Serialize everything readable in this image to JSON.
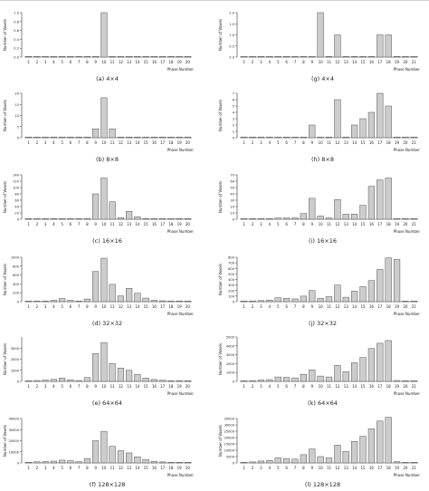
{
  "colors": {
    "bar_fill": "#cccccc",
    "bar_stroke": "#444444",
    "axis": "#333333",
    "text": "#222222"
  },
  "chart_data": [
    {
      "type": "bar",
      "caption": "(a) 4×4",
      "xlabel": "Phase Number",
      "ylabel": "Number of Voxels",
      "categories": [
        "1",
        "2",
        "3",
        "4",
        "5",
        "6",
        "7",
        "8",
        "9",
        "10",
        "11",
        "12",
        "13",
        "14",
        "15",
        "16",
        "17",
        "18",
        "19",
        "20"
      ],
      "values": [
        0,
        0,
        0,
        0,
        0,
        0,
        0,
        0,
        0,
        1,
        0,
        0,
        0,
        0,
        0,
        0,
        0,
        0,
        0,
        0
      ],
      "yticks": [
        "0.0",
        "0.2",
        "0.4",
        "0.6",
        "0.8",
        "1.0"
      ],
      "ylim": [
        0,
        1
      ],
      "grid": false
    },
    {
      "type": "bar",
      "caption": "(g) 4×4",
      "xlabel": "Phase Number",
      "ylabel": "Number of Voxels",
      "categories": [
        "1",
        "2",
        "3",
        "4",
        "5",
        "6",
        "7",
        "8",
        "9",
        "10",
        "11",
        "12",
        "13",
        "14",
        "15",
        "16",
        "17",
        "18",
        "19",
        "20",
        "21"
      ],
      "values": [
        0,
        0,
        0,
        0,
        0,
        0,
        0,
        0,
        0,
        2,
        0,
        1,
        0,
        0,
        0,
        0,
        1,
        1,
        0,
        0,
        0
      ],
      "yticks": [
        "0.0",
        "0.5",
        "1.0",
        "1.5",
        "2.0"
      ],
      "ylim": [
        0,
        2
      ],
      "grid": false
    },
    {
      "type": "bar",
      "caption": "(b) 8×8",
      "xlabel": "Phase Number",
      "ylabel": "Number of Voxels",
      "categories": [
        "1",
        "2",
        "3",
        "4",
        "5",
        "6",
        "7",
        "8",
        "9",
        "10",
        "11",
        "12",
        "13",
        "14",
        "15",
        "16",
        "17",
        "18",
        "19",
        "20"
      ],
      "values": [
        0,
        0,
        0,
        0,
        0,
        0,
        0,
        0,
        4,
        18,
        4,
        0,
        0,
        0,
        0,
        0,
        0,
        0,
        0,
        0
      ],
      "yticks": [
        "0",
        "5",
        "10",
        "15",
        "20"
      ],
      "ylim": [
        0,
        20
      ],
      "grid": false
    },
    {
      "type": "bar",
      "caption": "(h) 8×8",
      "xlabel": "Phase Number",
      "ylabel": "Number of Voxels",
      "categories": [
        "1",
        "2",
        "3",
        "4",
        "5",
        "6",
        "7",
        "8",
        "9",
        "10",
        "11",
        "12",
        "13",
        "14",
        "15",
        "16",
        "17",
        "18",
        "19",
        "20",
        "21"
      ],
      "values": [
        0,
        0,
        0,
        0,
        0,
        0,
        0,
        0,
        2,
        0,
        0,
        6,
        0,
        2,
        3,
        4,
        7,
        5,
        0,
        0,
        0
      ],
      "yticks": [
        "0",
        "1",
        "2",
        "3",
        "4",
        "5",
        "6",
        "7"
      ],
      "ylim": [
        0,
        7
      ],
      "grid": false
    },
    {
      "type": "bar",
      "caption": "(c) 16×16",
      "xlabel": "Phase Number",
      "ylabel": "Number of Voxels",
      "categories": [
        "1",
        "2",
        "3",
        "4",
        "5",
        "6",
        "7",
        "8",
        "9",
        "10",
        "11",
        "12",
        "13",
        "14",
        "15",
        "16",
        "17",
        "18",
        "19",
        "20"
      ],
      "values": [
        0,
        0,
        1,
        2,
        1,
        0,
        1,
        1,
        80,
        130,
        55,
        5,
        25,
        8,
        2,
        1,
        0,
        0,
        0,
        0
      ],
      "yticks": [
        "0",
        "20",
        "40",
        "60",
        "80",
        "100",
        "120",
        "140"
      ],
      "ylim": [
        0,
        140
      ],
      "grid": false
    },
    {
      "type": "bar",
      "caption": "(i) 16×16",
      "xlabel": "Phase Number",
      "ylabel": "Number of Voxels",
      "categories": [
        "1",
        "2",
        "3",
        "4",
        "5",
        "6",
        "7",
        "8",
        "9",
        "10",
        "11",
        "12",
        "13",
        "14",
        "15",
        "16",
        "17",
        "18",
        "19",
        "20",
        "21"
      ],
      "values": [
        0,
        0,
        1,
        1,
        2,
        2,
        2,
        9,
        33,
        5,
        2,
        31,
        8,
        8,
        22,
        52,
        62,
        65,
        0,
        0,
        0
      ],
      "yticks": [
        "0",
        "10",
        "20",
        "30",
        "40",
        "50",
        "60",
        "70"
      ],
      "ylim": [
        0,
        70
      ],
      "grid": false
    },
    {
      "type": "bar",
      "caption": "(d) 32×32",
      "xlabel": "Phase Number",
      "ylabel": "Number of Voxels",
      "categories": [
        "1",
        "2",
        "3",
        "4",
        "5",
        "6",
        "7",
        "8",
        "9",
        "10",
        "11",
        "12",
        "13",
        "14",
        "15",
        "16",
        "17",
        "18",
        "19",
        "20"
      ],
      "values": [
        5,
        10,
        15,
        30,
        70,
        30,
        15,
        60,
        680,
        980,
        390,
        130,
        300,
        190,
        80,
        30,
        20,
        10,
        5,
        5
      ],
      "yticks": [
        "0",
        "200",
        "400",
        "600",
        "800",
        "1000"
      ],
      "ylim": [
        0,
        1000
      ],
      "grid": false
    },
    {
      "type": "bar",
      "caption": "(j) 32×32",
      "xlabel": "Phase Number",
      "ylabel": "Number of Voxels",
      "categories": [
        "1",
        "2",
        "3",
        "4",
        "5",
        "6",
        "7",
        "8",
        "9",
        "10",
        "11",
        "12",
        "13",
        "14",
        "15",
        "16",
        "17",
        "18",
        "19",
        "20",
        "21"
      ],
      "values": [
        5,
        10,
        20,
        30,
        70,
        60,
        50,
        100,
        200,
        60,
        90,
        300,
        80,
        190,
        270,
        380,
        580,
        790,
        760,
        0,
        0
      ],
      "yticks": [
        "0",
        "100",
        "200",
        "300",
        "400",
        "500",
        "600",
        "700",
        "800"
      ],
      "ylim": [
        0,
        800
      ],
      "grid": false
    },
    {
      "type": "bar",
      "caption": "(e) 64×64",
      "xlabel": "Phase Number",
      "ylabel": "Number of Voxels",
      "categories": [
        "1",
        "2",
        "3",
        "4",
        "5",
        "6",
        "7",
        "8",
        "9",
        "10",
        "11",
        "12",
        "13",
        "14",
        "15",
        "16",
        "17",
        "18",
        "19",
        "20"
      ],
      "values": [
        30,
        80,
        120,
        180,
        300,
        150,
        80,
        350,
        2500,
        3500,
        1620,
        1200,
        1000,
        620,
        300,
        170,
        100,
        60,
        30,
        20
      ],
      "yticks": [
        "0",
        "1000",
        "2000",
        "3000"
      ],
      "ylim": [
        0,
        4000
      ],
      "grid": false
    },
    {
      "type": "bar",
      "caption": "(k) 64×64",
      "xlabel": "Phase Number",
      "ylabel": "Number of Voxels",
      "categories": [
        "1",
        "2",
        "3",
        "4",
        "5",
        "6",
        "7",
        "8",
        "9",
        "10",
        "11",
        "12",
        "13",
        "14",
        "15",
        "16",
        "17",
        "18",
        "19",
        "20",
        "21"
      ],
      "values": [
        50,
        80,
        150,
        200,
        500,
        450,
        400,
        800,
        1300,
        600,
        500,
        1800,
        1100,
        2100,
        2700,
        3700,
        4300,
        4600,
        100,
        50,
        0
      ],
      "yticks": [
        "0",
        "1000",
        "2000",
        "3000",
        "4000",
        "5000"
      ],
      "ylim": [
        0,
        5000
      ],
      "grid": false
    },
    {
      "type": "bar",
      "caption": "(f) 128×128",
      "xlabel": "Phase Number",
      "ylabel": "Number of Voxels",
      "categories": [
        "1",
        "2",
        "3",
        "4",
        "5",
        "6",
        "7",
        "8",
        "9",
        "10",
        "11",
        "12",
        "13",
        "14",
        "15",
        "16",
        "17",
        "18",
        "19",
        "20"
      ],
      "values": [
        500,
        1000,
        1200,
        1600,
        2500,
        2000,
        1200,
        4000,
        20000,
        28500,
        15000,
        11000,
        9000,
        5500,
        3000,
        1500,
        900,
        600,
        300,
        200
      ],
      "yticks": [
        "0",
        "10000",
        "20000",
        "30000",
        "40000"
      ],
      "ylim": [
        0,
        40000
      ],
      "grid": false
    },
    {
      "type": "bar",
      "caption": "(l) 128×128",
      "xlabel": "Phase Number",
      "ylabel": "Number of Voxels",
      "categories": [
        "1",
        "2",
        "3",
        "4",
        "5",
        "6",
        "7",
        "8",
        "9",
        "10",
        "11",
        "12",
        "13",
        "14",
        "15",
        "16",
        "17",
        "18",
        "19",
        "20",
        "21"
      ],
      "values": [
        500,
        800,
        1500,
        2000,
        4000,
        3500,
        3000,
        6500,
        11000,
        5000,
        4000,
        14000,
        9000,
        17000,
        21000,
        27000,
        33000,
        36000,
        1000,
        500,
        0
      ],
      "yticks": [
        "0",
        "5000",
        "10000",
        "15000",
        "20000",
        "25000",
        "30000",
        "35000"
      ],
      "ylim": [
        0,
        35000
      ],
      "grid": false
    }
  ]
}
